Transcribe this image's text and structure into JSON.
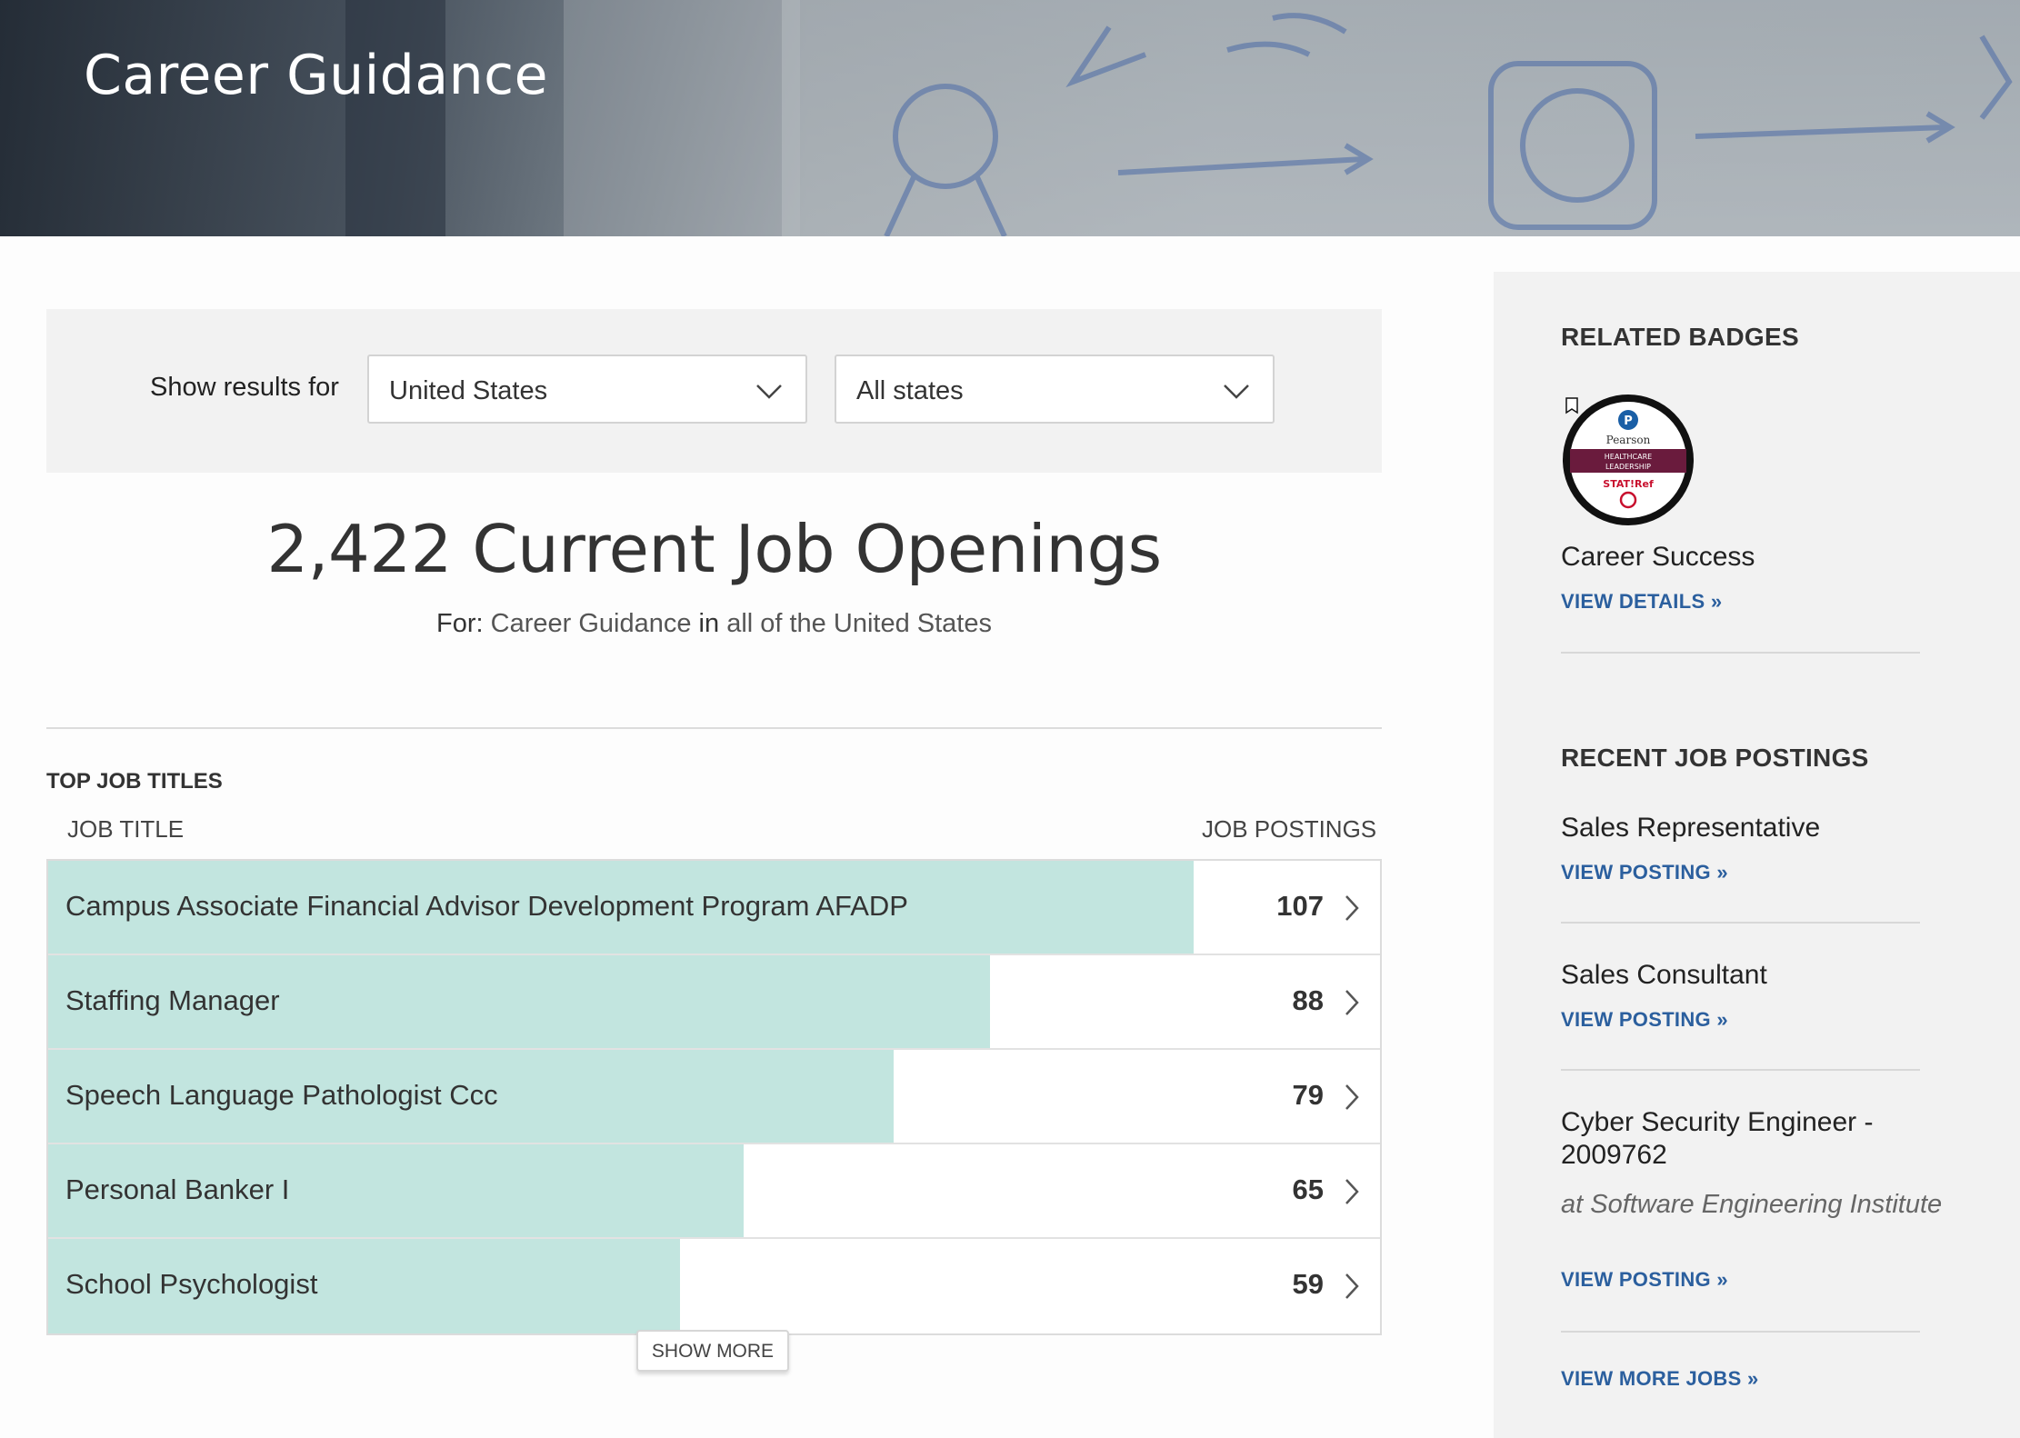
{
  "hero": {
    "title": "Career Guidance"
  },
  "filters": {
    "label": "Show results for",
    "country": {
      "value": "United States"
    },
    "state": {
      "value": "All states"
    }
  },
  "summary": {
    "count_title": "2,422 Current Job Openings",
    "for_label": "For:",
    "for_value": "Career Guidance",
    "in_label": "in",
    "in_value": "all of the United States"
  },
  "top_jobs": {
    "section_title": "TOP JOB TITLES",
    "col_title": "JOB TITLE",
    "col_postings": "JOB POSTINGS",
    "rows": [
      {
        "title": "Campus Associate Financial Advisor Development Program AFADP",
        "postings": "107",
        "value": 107
      },
      {
        "title": "Staffing Manager",
        "postings": "88",
        "value": 88
      },
      {
        "title": "Speech Language Pathologist Ccc",
        "postings": "79",
        "value": 79
      },
      {
        "title": "Personal Banker I",
        "postings": "65",
        "value": 65
      },
      {
        "title": "School Psychologist",
        "postings": "59",
        "value": 59
      }
    ],
    "show_more": "SHOW MORE"
  },
  "sidebar": {
    "related_badges_title": "RELATED BADGES",
    "badge": {
      "brand": "Pearson",
      "line1": "HEALTHCARE",
      "line2": "LEADERSHIP",
      "line3": "STAT!Ref",
      "name": "Career Success",
      "link": "VIEW DETAILS »"
    },
    "recent_title": "RECENT JOB POSTINGS",
    "postings": [
      {
        "title": "Sales Representative",
        "link": "VIEW POSTING »"
      },
      {
        "title": "Sales Consultant",
        "link": "VIEW POSTING »"
      },
      {
        "title": "Cyber Security Engineer - 2009762",
        "company": "at Software Engineering Institute",
        "link": "VIEW POSTING »"
      }
    ],
    "more_jobs": "VIEW MORE JOBS »"
  },
  "colors": {
    "bar": "#c2e5df",
    "link": "#2b5f9e",
    "panel": "#f2f2f2"
  }
}
